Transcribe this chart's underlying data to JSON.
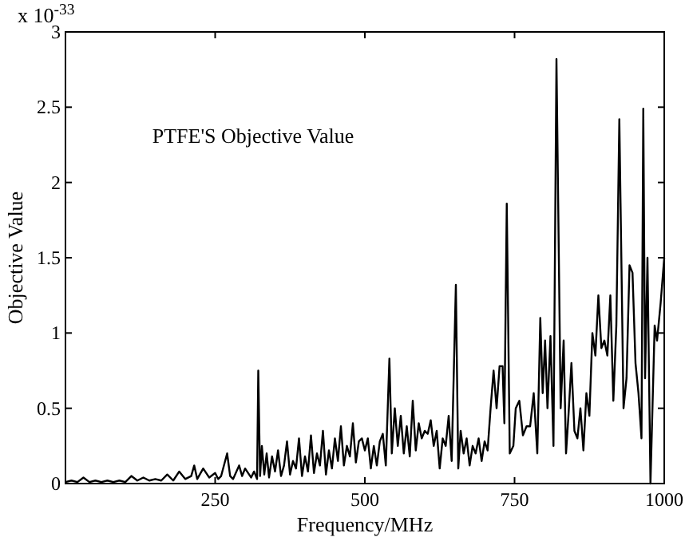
{
  "chart_data": {
    "type": "line",
    "xlabel": "Frequency/MHz",
    "ylabel": "Objective Value",
    "annotations": [
      "PTFE'S Objective Value",
      "x 10$^{-33}$"
    ],
    "xlim": [
      0,
      1000
    ],
    "ylim": [
      0,
      3
    ],
    "xticks": [
      250,
      500,
      750,
      1000
    ],
    "yticks": [
      0,
      0.5,
      1,
      1.5,
      2,
      2.5,
      3
    ],
    "grid": false,
    "series": [
      {
        "color": "#000000",
        "x": [
          0,
          10,
          20,
          30,
          40,
          50,
          60,
          70,
          80,
          90,
          100,
          110,
          120,
          130,
          140,
          150,
          160,
          170,
          180,
          190,
          200,
          210,
          215,
          220,
          230,
          240,
          250,
          255,
          260,
          270,
          275,
          280,
          290,
          295,
          300,
          310,
          315,
          320,
          322,
          325,
          328,
          332,
          336,
          340,
          345,
          350,
          355,
          360,
          365,
          370,
          375,
          380,
          385,
          390,
          395,
          400,
          405,
          410,
          415,
          420,
          425,
          430,
          435,
          440,
          445,
          450,
          455,
          460,
          465,
          470,
          475,
          480,
          485,
          490,
          495,
          500,
          505,
          510,
          515,
          520,
          525,
          530,
          535,
          541,
          545,
          550,
          555,
          560,
          565,
          570,
          575,
          580,
          585,
          590,
          595,
          600,
          605,
          610,
          615,
          620,
          625,
          630,
          635,
          640,
          645,
          652,
          656,
          660,
          665,
          670,
          675,
          680,
          685,
          690,
          695,
          700,
          705,
          710,
          715,
          720,
          725,
          730,
          733,
          737,
          742,
          748,
          752,
          758,
          764,
          770,
          776,
          782,
          788,
          793,
          797,
          801,
          805,
          810,
          815,
          820,
          827,
          832,
          836,
          840,
          845,
          850,
          855,
          860,
          865,
          870,
          875,
          880,
          885,
          890,
          895,
          900,
          905,
          910,
          915,
          920,
          925,
          932,
          937,
          942,
          947,
          952,
          957,
          962,
          965,
          968,
          972,
          977,
          984,
          988,
          994,
          1000
        ],
        "values": [
          0.01,
          0.02,
          0.01,
          0.04,
          0.01,
          0.02,
          0.01,
          0.02,
          0.01,
          0.02,
          0.01,
          0.05,
          0.02,
          0.04,
          0.02,
          0.03,
          0.02,
          0.06,
          0.02,
          0.08,
          0.03,
          0.05,
          0.12,
          0.03,
          0.1,
          0.04,
          0.07,
          0.03,
          0.05,
          0.2,
          0.05,
          0.03,
          0.12,
          0.05,
          0.1,
          0.04,
          0.08,
          0.03,
          0.75,
          0.05,
          0.25,
          0.06,
          0.2,
          0.04,
          0.18,
          0.08,
          0.22,
          0.05,
          0.12,
          0.28,
          0.06,
          0.15,
          0.1,
          0.3,
          0.05,
          0.18,
          0.08,
          0.32,
          0.07,
          0.2,
          0.12,
          0.35,
          0.06,
          0.22,
          0.1,
          0.3,
          0.15,
          0.38,
          0.12,
          0.25,
          0.18,
          0.4,
          0.14,
          0.28,
          0.3,
          0.22,
          0.3,
          0.1,
          0.25,
          0.12,
          0.28,
          0.33,
          0.12,
          0.83,
          0.2,
          0.5,
          0.25,
          0.45,
          0.2,
          0.38,
          0.18,
          0.55,
          0.22,
          0.4,
          0.3,
          0.35,
          0.33,
          0.42,
          0.25,
          0.35,
          0.1,
          0.3,
          0.25,
          0.45,
          0.15,
          1.32,
          0.1,
          0.35,
          0.2,
          0.3,
          0.12,
          0.25,
          0.2,
          0.3,
          0.15,
          0.28,
          0.22,
          0.5,
          0.75,
          0.5,
          0.78,
          0.78,
          0.4,
          1.86,
          0.2,
          0.25,
          0.5,
          0.55,
          0.32,
          0.38,
          0.38,
          0.6,
          0.2,
          1.1,
          0.6,
          0.95,
          0.5,
          0.98,
          0.25,
          2.82,
          0.5,
          0.95,
          0.2,
          0.45,
          0.8,
          0.35,
          0.3,
          0.5,
          0.22,
          0.6,
          0.45,
          1.0,
          0.85,
          1.25,
          0.9,
          0.95,
          0.85,
          1.25,
          0.55,
          1.05,
          2.42,
          0.5,
          0.7,
          1.45,
          1.4,
          0.8,
          0.6,
          0.3,
          2.49,
          0.7,
          1.5,
          0.0,
          1.05,
          0.95,
          1.2,
          1.5
        ]
      }
    ]
  }
}
